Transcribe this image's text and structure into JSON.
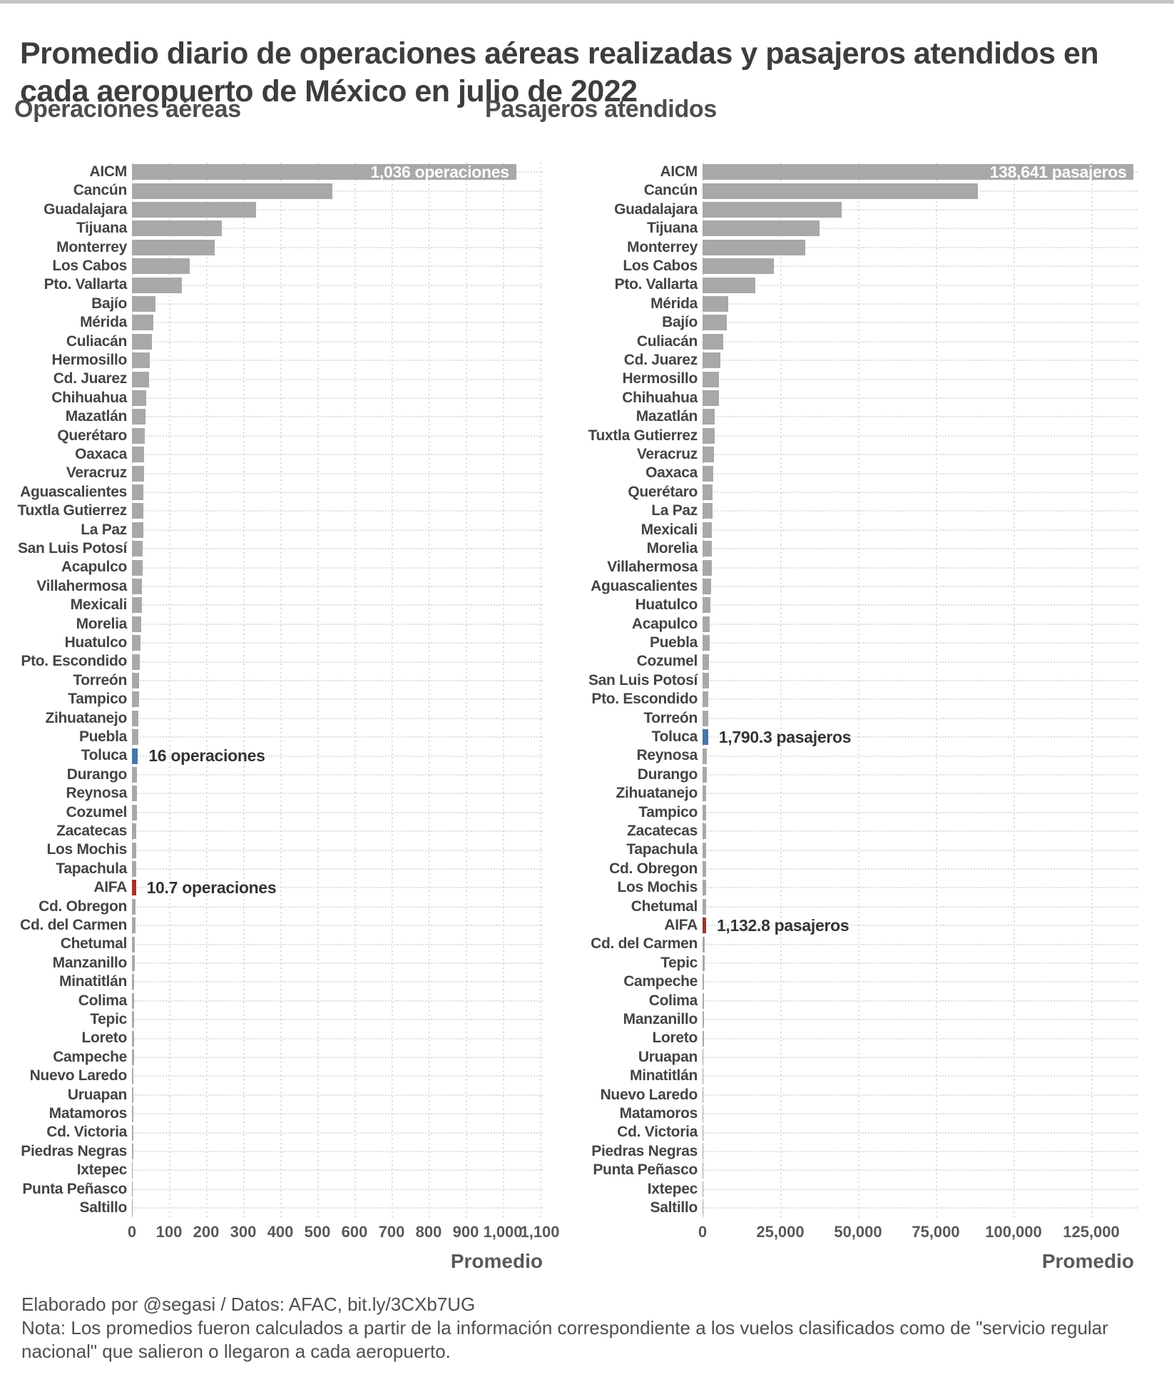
{
  "page": {
    "title": "Promedio diario de operaciones aéreas realizadas y pasajeros atendidos en cada aeropuerto de México en julio de 2022",
    "footer_line1": "Elaborado por @segasi / Datos: AFAC, bit.ly/3CXb7UG",
    "footer_line2": "Nota: Los promedios fueron calculados a partir de la información correspondiente a los vuelos clasificados como de \"servicio regular nacional\" que salieron o llegaron a cada aeropuerto."
  },
  "colors": {
    "bar_gray": "#a8a8a8",
    "bar_blue": "#4577a9",
    "bar_red": "#a93226",
    "grid": "#dcdcdc",
    "inner_label_text": "#ffffff"
  },
  "chart_data": [
    {
      "type": "bar",
      "orientation": "horizontal",
      "title": "Operaciones aéreas",
      "xlabel": "Promedio",
      "unit": "operaciones",
      "xlim": [
        0,
        1100
      ],
      "grid": "dotted",
      "ticks": [
        {
          "v": 0,
          "label": "0"
        },
        {
          "v": 100,
          "label": "100"
        },
        {
          "v": 200,
          "label": "200"
        },
        {
          "v": 300,
          "label": "300"
        },
        {
          "v": 400,
          "label": "400"
        },
        {
          "v": 500,
          "label": "500"
        },
        {
          "v": 600,
          "label": "600"
        },
        {
          "v": 700,
          "label": "700"
        },
        {
          "v": 800,
          "label": "800"
        },
        {
          "v": 900,
          "label": "900"
        },
        {
          "v": 1000,
          "label": "1,000"
        },
        {
          "v": 1100,
          "label": "1,100"
        }
      ],
      "categories": [
        "AICM",
        "Cancún",
        "Guadalajara",
        "Tijuana",
        "Monterrey",
        "Los Cabos",
        "Pto. Vallarta",
        "Bajío",
        "Mérida",
        "Culiacán",
        "Hermosillo",
        "Cd. Juarez",
        "Chihuahua",
        "Mazatlán",
        "Querétaro",
        "Oaxaca",
        "Veracruz",
        "Aguascalientes",
        "Tuxtla Gutierrez",
        "La Paz",
        "San Luis Potosí",
        "Acapulco",
        "Villahermosa",
        "Mexicali",
        "Morelia",
        "Huatulco",
        "Pto. Escondido",
        "Torreón",
        "Tampico",
        "Zihuatanejo",
        "Puebla",
        "Toluca",
        "Durango",
        "Reynosa",
        "Cozumel",
        "Zacatecas",
        "Los Mochis",
        "Tapachula",
        "AIFA",
        "Cd. Obregon",
        "Cd. del Carmen",
        "Chetumal",
        "Manzanillo",
        "Minatitlán",
        "Colima",
        "Tepic",
        "Loreto",
        "Campeche",
        "Nuevo Laredo",
        "Uruapan",
        "Matamoros",
        "Cd. Victoria",
        "Piedras Negras",
        "Ixtepec",
        "Punta Peñasco",
        "Saltillo"
      ],
      "values": [
        1036,
        541,
        334,
        243,
        224,
        155,
        134,
        63,
        58,
        53,
        49,
        47,
        38,
        36,
        35,
        33,
        33,
        31,
        30,
        30,
        28,
        28,
        27,
        26,
        25,
        24,
        21,
        20,
        19,
        18,
        17,
        16,
        14,
        14,
        13,
        12,
        12,
        11,
        10.7,
        9.5,
        9,
        8,
        7,
        6.5,
        6.5,
        6,
        5.5,
        5,
        4.5,
        4.5,
        4,
        3.5,
        3,
        2.5,
        2,
        1.5
      ],
      "highlights": {
        "Toluca": "blue",
        "AIFA": "red"
      },
      "annotations": [
        {
          "category": "AICM",
          "text": "1,036 operaciones",
          "placement": "inside"
        },
        {
          "category": "Toluca",
          "text": "16 operaciones",
          "placement": "outside"
        },
        {
          "category": "AIFA",
          "text": "10.7 operaciones",
          "placement": "outside"
        }
      ]
    },
    {
      "type": "bar",
      "orientation": "horizontal",
      "title": "Pasajeros atendidos",
      "xlabel": "Promedio",
      "unit": "pasajeros",
      "xlim": [
        0,
        125000
      ],
      "grid": "dotted",
      "ticks": [
        {
          "v": 0,
          "label": "0"
        },
        {
          "v": 25000,
          "label": "25,000"
        },
        {
          "v": 50000,
          "label": "50,000"
        },
        {
          "v": 75000,
          "label": "75,000"
        },
        {
          "v": 100000,
          "label": "100,000"
        },
        {
          "v": 125000,
          "label": "125,000"
        }
      ],
      "categories": [
        "AICM",
        "Cancún",
        "Guadalajara",
        "Tijuana",
        "Monterrey",
        "Los Cabos",
        "Pto. Vallarta",
        "Mérida",
        "Bajío",
        "Culiacán",
        "Cd. Juarez",
        "Hermosillo",
        "Chihuahua",
        "Mazatlán",
        "Tuxtla Gutierrez",
        "Veracruz",
        "Oaxaca",
        "Querétaro",
        "La Paz",
        "Mexicali",
        "Morelia",
        "Villahermosa",
        "Aguascalientes",
        "Huatulco",
        "Acapulco",
        "Puebla",
        "Cozumel",
        "San Luis Potosí",
        "Pto. Escondido",
        "Torreón",
        "Toluca",
        "Reynosa",
        "Durango",
        "Zihuatanejo",
        "Tampico",
        "Zacatecas",
        "Tapachula",
        "Cd. Obregon",
        "Los Mochis",
        "Chetumal",
        "AIFA",
        "Cd. del Carmen",
        "Tepic",
        "Campeche",
        "Colima",
        "Manzanillo",
        "Loreto",
        "Uruapan",
        "Minatitlán",
        "Nuevo Laredo",
        "Matamoros",
        "Cd. Victoria",
        "Piedras Negras",
        "Punta Peñasco",
        "Ixtepec",
        "Saltillo"
      ],
      "values": [
        138641,
        88500,
        44800,
        37500,
        33100,
        22900,
        17000,
        8200,
        7900,
        6700,
        5800,
        5300,
        5200,
        3900,
        3800,
        3600,
        3500,
        3300,
        3200,
        3000,
        2900,
        2900,
        2700,
        2600,
        2400,
        2200,
        2100,
        2000,
        1900,
        1850,
        1790.3,
        1400,
        1300,
        1250,
        1250,
        1200,
        1150,
        1150,
        1140,
        1135,
        1132.8,
        800,
        600,
        500,
        450,
        420,
        350,
        300,
        280,
        250,
        200,
        160,
        120,
        100,
        80,
        50
      ],
      "highlights": {
        "Toluca": "blue",
        "AIFA": "red"
      },
      "annotations": [
        {
          "category": "AICM",
          "text": "138,641 pasajeros",
          "placement": "inside"
        },
        {
          "category": "Toluca",
          "text": "1,790.3 pasajeros",
          "placement": "outside"
        },
        {
          "category": "AIFA",
          "text": "1,132.8 pasajeros",
          "placement": "outside"
        }
      ]
    }
  ]
}
